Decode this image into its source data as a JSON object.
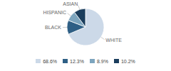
{
  "chart_data": {
    "type": "pie",
    "categories": [
      "WHITE",
      "BLACK",
      "HISPANIC",
      "ASIAN"
    ],
    "values": [
      68.6,
      12.3,
      8.9,
      10.2
    ],
    "colors": [
      "#ccd9e8",
      "#2e5f85",
      "#7da5be",
      "#1a3d5c"
    ],
    "value_labels": [
      "68.6%",
      "12.3%",
      "8.9%",
      "10.2%"
    ],
    "legend": "bottom"
  }
}
